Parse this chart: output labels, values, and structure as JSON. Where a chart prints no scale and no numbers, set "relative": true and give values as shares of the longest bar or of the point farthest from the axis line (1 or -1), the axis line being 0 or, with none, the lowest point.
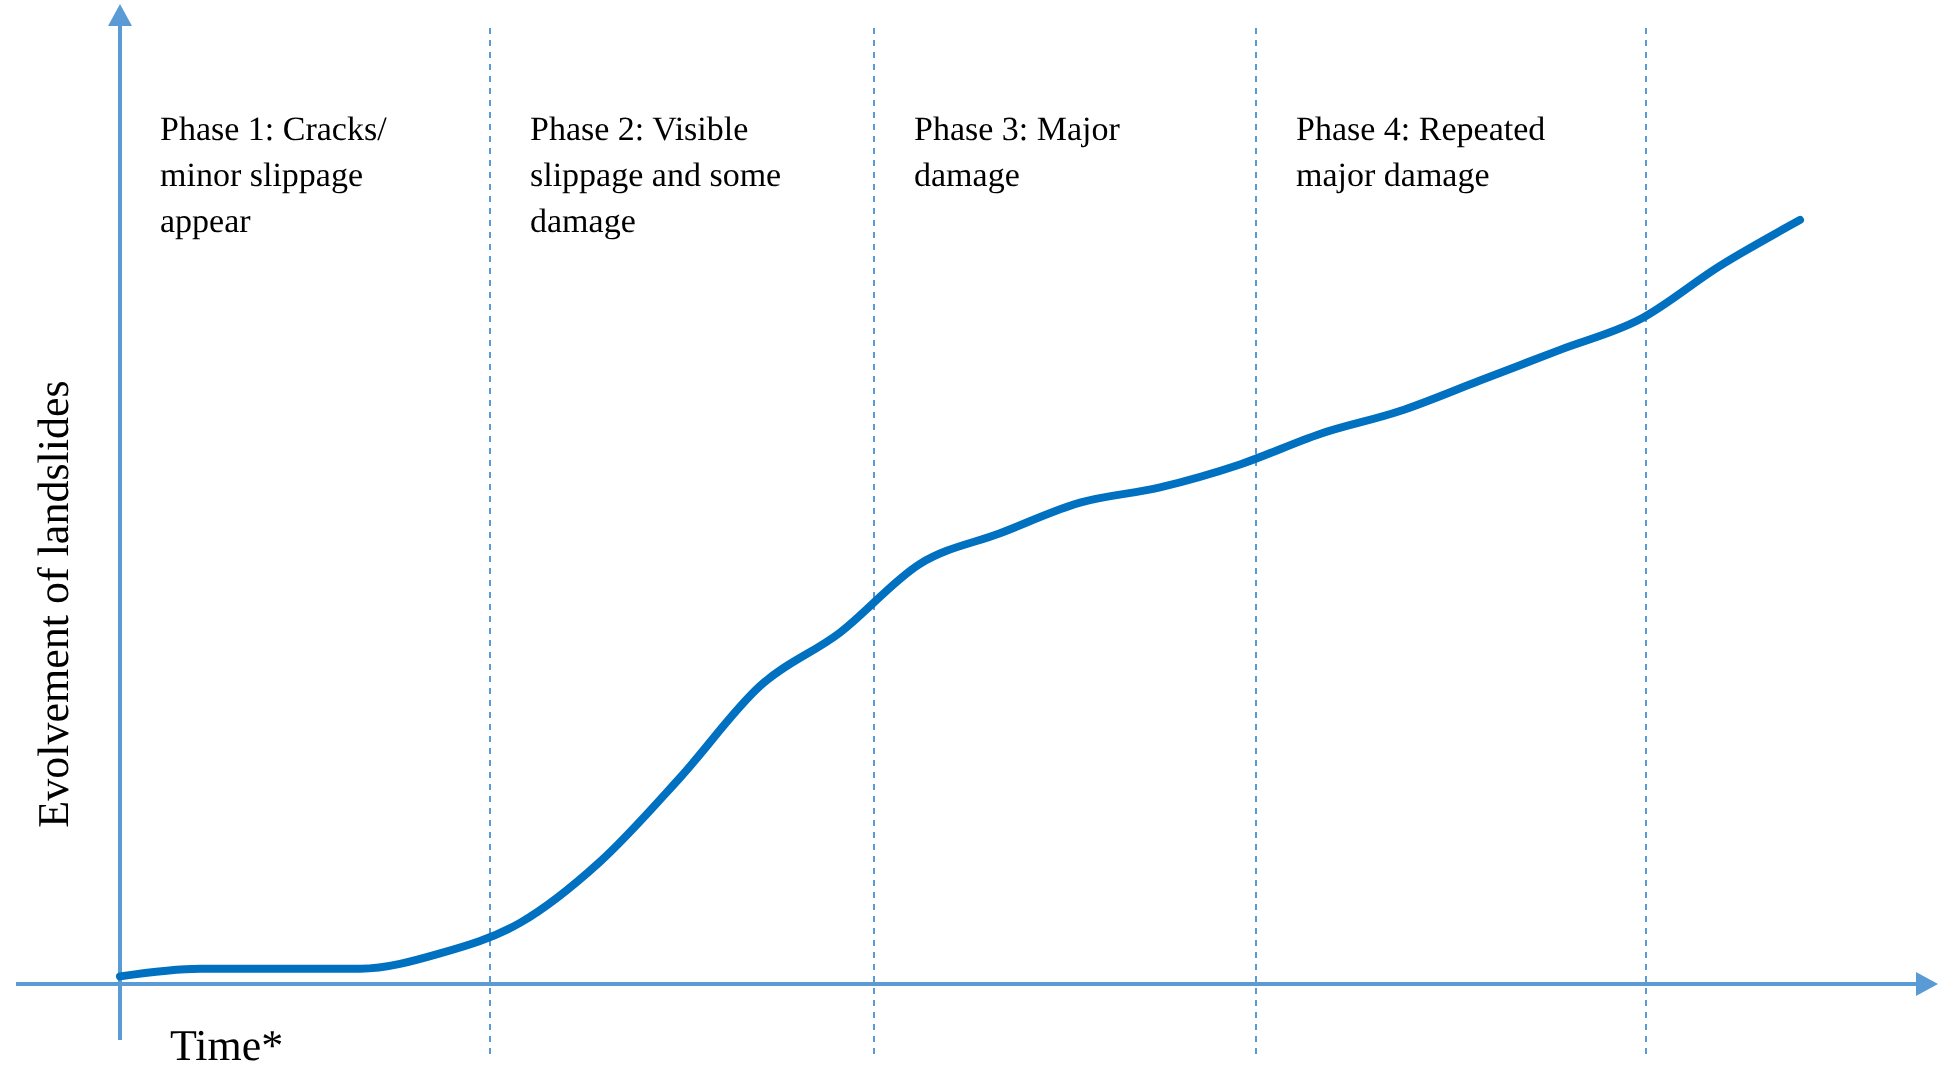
{
  "chart_data": {
    "type": "line",
    "relative": true,
    "xlabel": "Time*",
    "ylabel": "Evolvement of landslides",
    "categories": [
      null,
      null,
      null,
      null,
      null,
      null,
      null,
      null,
      null,
      null,
      null,
      null,
      null,
      null,
      null,
      null,
      null,
      null,
      null,
      null,
      null,
      null
    ],
    "series": [
      {
        "color": "#0070c0",
        "values": [
          0.01,
          0.02,
          0.02,
          0.02,
          0.04,
          0.08,
          0.16,
          0.27,
          0.39,
          0.46,
          0.55,
          0.59,
          0.63,
          0.65,
          0.68,
          0.72,
          0.75,
          0.79,
          0.83,
          0.87,
          0.94,
          1
        ]
      }
    ],
    "annotations": [
      "Phase 1: Cracks/ minor slippage appear",
      "Phase 2: Visible slippage and some damage",
      "Phase 3: Major damage",
      "Phase 4: Repeated major damage"
    ],
    "marker": "none",
    "line_style": "solid"
  }
}
